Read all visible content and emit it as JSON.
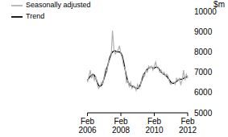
{
  "chart_data": {
    "type": "line",
    "ylabel": "$m",
    "categories": [
      "Feb 2006",
      null,
      null,
      null,
      null,
      null,
      null,
      null,
      null,
      null,
      null,
      null,
      null,
      null,
      null,
      null,
      null,
      null,
      null,
      null,
      null,
      null,
      null,
      null,
      "Feb 2008",
      null,
      null,
      null,
      null,
      null,
      null,
      null,
      null,
      null,
      null,
      null,
      null,
      null,
      null,
      null,
      null,
      null,
      null,
      null,
      null,
      null,
      null,
      null,
      "Feb 2010",
      null,
      null,
      null,
      null,
      null,
      null,
      null,
      null,
      null,
      null,
      null,
      null,
      null,
      null,
      null,
      null,
      null,
      null,
      null,
      null,
      null,
      null,
      null,
      "Feb 2012"
    ],
    "series": [
      {
        "name": "Trend",
        "color": "#000000",
        "values": [
          6600,
          6700,
          6800,
          6850,
          6900,
          6850,
          6700,
          6500,
          6350,
          6300,
          6350,
          6500,
          6700,
          6950,
          7200,
          7450,
          7700,
          7900,
          8000,
          8050,
          8050,
          8000,
          8000,
          8000,
          7950,
          7800,
          7500,
          7150,
          6800,
          6550,
          6400,
          6350,
          6300,
          6300,
          6250,
          6200,
          6200,
          6250,
          6400,
          6600,
          6800,
          6950,
          7050,
          7150,
          7200,
          7250,
          7250,
          7200,
          7200,
          7250,
          7250,
          7200,
          7100,
          7000,
          6950,
          6900,
          6850,
          6800,
          6700,
          6600,
          6500,
          6450,
          6450,
          6500,
          6550,
          6600,
          6650,
          6650,
          6650,
          6700,
          6750,
          6750,
          6800
        ]
      },
      {
        "name": "Seasonally adjusted",
        "color": "#b0b0b0",
        "values": [
          6500,
          6800,
          7100,
          6700,
          6900,
          6600,
          6800,
          6400,
          6200,
          6300,
          6500,
          6400,
          6800,
          7200,
          7000,
          7500,
          7600,
          7800,
          9050,
          8100,
          7900,
          8000,
          8100,
          8300,
          7900,
          7700,
          7300,
          7200,
          6500,
          6600,
          6300,
          6500,
          6200,
          6300,
          6300,
          6100,
          6400,
          6200,
          6300,
          6700,
          6900,
          6800,
          7100,
          7000,
          7300,
          7200,
          7300,
          7100,
          7300,
          7500,
          7200,
          7200,
          7000,
          7100,
          6900,
          7000,
          6800,
          6900,
          6800,
          6500,
          6400,
          6500,
          6500,
          6400,
          6700,
          6600,
          6700,
          6400,
          6600,
          7100,
          6600,
          6900,
          6700
        ]
      }
    ],
    "ylim": [
      5000,
      10000
    ],
    "yticks": [
      5000,
      6000,
      7000,
      8000,
      9000,
      10000
    ],
    "grid": false,
    "legend": "top left"
  }
}
